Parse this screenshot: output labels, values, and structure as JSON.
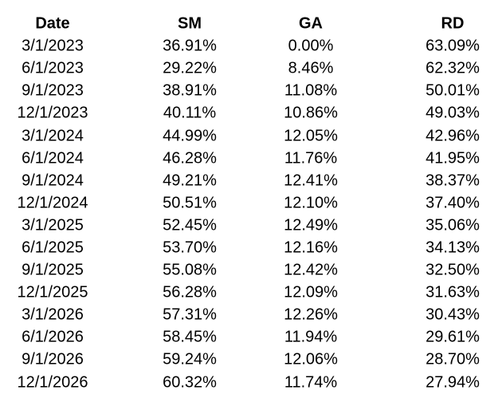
{
  "table": {
    "columns": [
      {
        "label": "Date"
      },
      {
        "label": "SM"
      },
      {
        "label": "GA"
      },
      {
        "label": "RD"
      }
    ],
    "rows": [
      {
        "date": "3/1/2023",
        "sm": "36.91%",
        "ga": "0.00%",
        "rd": "63.09%"
      },
      {
        "date": "6/1/2023",
        "sm": "29.22%",
        "ga": "8.46%",
        "rd": "62.32%"
      },
      {
        "date": "9/1/2023",
        "sm": "38.91%",
        "ga": "11.08%",
        "rd": "50.01%"
      },
      {
        "date": "12/1/2023",
        "sm": "40.11%",
        "ga": "10.86%",
        "rd": "49.03%"
      },
      {
        "date": "3/1/2024",
        "sm": "44.99%",
        "ga": "12.05%",
        "rd": "42.96%"
      },
      {
        "date": "6/1/2024",
        "sm": "46.28%",
        "ga": "11.76%",
        "rd": "41.95%"
      },
      {
        "date": "9/1/2024",
        "sm": "49.21%",
        "ga": "12.41%",
        "rd": "38.37%"
      },
      {
        "date": "12/1/2024",
        "sm": "50.51%",
        "ga": "12.10%",
        "rd": "37.40%"
      },
      {
        "date": "3/1/2025",
        "sm": "52.45%",
        "ga": "12.49%",
        "rd": "35.06%"
      },
      {
        "date": "6/1/2025",
        "sm": "53.70%",
        "ga": "12.16%",
        "rd": "34.13%"
      },
      {
        "date": "9/1/2025",
        "sm": "55.08%",
        "ga": "12.42%",
        "rd": "32.50%"
      },
      {
        "date": "12/1/2025",
        "sm": "56.28%",
        "ga": "12.09%",
        "rd": "31.63%"
      },
      {
        "date": "3/1/2026",
        "sm": "57.31%",
        "ga": "12.26%",
        "rd": "30.43%"
      },
      {
        "date": "6/1/2026",
        "sm": "58.45%",
        "ga": "11.94%",
        "rd": "29.61%"
      },
      {
        "date": "9/1/2026",
        "sm": "59.24%",
        "ga": "12.06%",
        "rd": "28.70%"
      },
      {
        "date": "12/1/2026",
        "sm": "60.32%",
        "ga": "11.74%",
        "rd": "27.94%"
      }
    ],
    "text_color": "#000000",
    "background_color": "#ffffff"
  },
  "chart_data": {
    "type": "table",
    "title": "",
    "columns": [
      "Date",
      "SM",
      "GA",
      "RD"
    ],
    "units": "percent",
    "categories": [
      "3/1/2023",
      "6/1/2023",
      "9/1/2023",
      "12/1/2023",
      "3/1/2024",
      "6/1/2024",
      "9/1/2024",
      "12/1/2024",
      "3/1/2025",
      "6/1/2025",
      "9/1/2025",
      "12/1/2025",
      "3/1/2026",
      "6/1/2026",
      "9/1/2026",
      "12/1/2026"
    ],
    "series": [
      {
        "name": "SM",
        "values": [
          36.91,
          29.22,
          38.91,
          40.11,
          44.99,
          46.28,
          49.21,
          50.51,
          52.45,
          53.7,
          55.08,
          56.28,
          57.31,
          58.45,
          59.24,
          60.32
        ]
      },
      {
        "name": "GA",
        "values": [
          0.0,
          8.46,
          11.08,
          10.86,
          12.05,
          11.76,
          12.41,
          12.1,
          12.49,
          12.16,
          12.42,
          12.09,
          12.26,
          11.94,
          12.06,
          11.74
        ]
      },
      {
        "name": "RD",
        "values": [
          63.09,
          62.32,
          50.01,
          49.03,
          42.96,
          41.95,
          38.37,
          37.4,
          35.06,
          34.13,
          32.5,
          31.63,
          30.43,
          29.61,
          28.7,
          27.94
        ]
      }
    ],
    "layout": {
      "grid": false,
      "header_bold": true,
      "column_alignment": "center"
    }
  }
}
